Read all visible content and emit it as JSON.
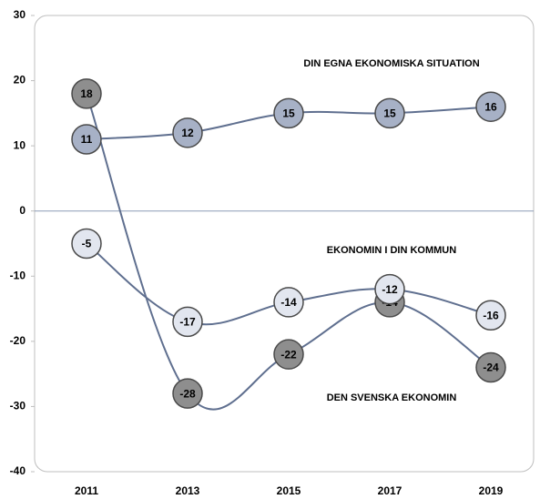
{
  "chart_data": {
    "type": "line",
    "categories": [
      "2011",
      "2013",
      "2015",
      "2017",
      "2019"
    ],
    "series": [
      {
        "name": "DIN EGNA EKONOMISKA SITUATION",
        "color": "#a7b1c6",
        "values": [
          11,
          12,
          15,
          15,
          16
        ]
      },
      {
        "name": "DEN SVENSKA EKONOMIN",
        "color": "#8e8e8e",
        "values": [
          18,
          -28,
          -22,
          -14,
          -24
        ]
      },
      {
        "name": "EKONOMIN I DIN KOMMUN",
        "color": "#e2e6ef",
        "values": [
          -5,
          -17,
          -14,
          -12,
          -16
        ]
      }
    ],
    "ylim": [
      -40,
      30
    ],
    "yticks": [
      -40,
      -30,
      -20,
      -10,
      0,
      10,
      20,
      30
    ]
  }
}
